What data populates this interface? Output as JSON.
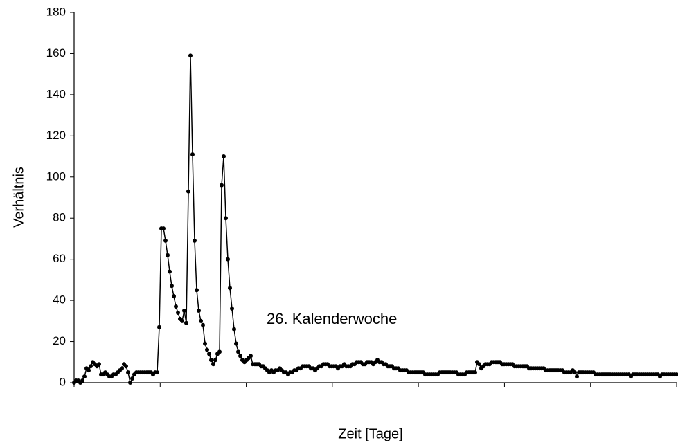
{
  "chart_data": {
    "type": "line",
    "y_label": "Verhältnis",
    "x_label": "Zeit [Tage]",
    "annotation": "26. Kalenderwoche",
    "color": "#000000",
    "ylim": [
      0,
      180
    ],
    "yticks": [
      0,
      20,
      40,
      60,
      80,
      100,
      120,
      140,
      160,
      180
    ],
    "values": [
      0,
      1,
      1,
      0,
      1,
      3,
      7,
      6,
      8,
      10,
      9,
      8,
      9,
      4,
      4,
      5,
      4,
      3,
      3,
      4,
      4,
      5,
      6,
      7,
      9,
      8,
      5,
      0,
      2,
      4,
      5,
      5,
      5,
      5,
      5,
      5,
      5,
      5,
      4,
      5,
      5,
      27,
      75,
      75,
      69,
      62,
      54,
      47,
      42,
      37,
      34,
      31,
      30,
      35,
      29,
      93,
      159,
      111,
      69,
      45,
      35,
      30,
      28,
      19,
      16,
      14,
      11,
      9,
      11,
      14,
      15,
      96,
      110,
      80,
      60,
      46,
      36,
      26,
      19,
      15,
      13,
      11,
      10,
      11,
      12,
      13,
      9,
      9,
      9,
      9,
      8,
      8,
      7,
      6,
      5,
      6,
      5,
      6,
      6,
      7,
      6,
      5,
      5,
      4,
      5,
      5,
      6,
      6,
      7,
      7,
      8,
      8,
      8,
      8,
      7,
      7,
      6,
      7,
      8,
      8,
      9,
      9,
      9,
      8,
      8,
      8,
      8,
      7,
      8,
      8,
      9,
      8,
      8,
      8,
      9,
      9,
      10,
      10,
      10,
      9,
      9,
      10,
      10,
      10,
      9,
      10,
      11,
      10,
      10,
      9,
      9,
      8,
      8,
      8,
      7,
      7,
      7,
      6,
      6,
      6,
      6,
      5,
      5,
      5,
      5,
      5,
      5,
      5,
      5,
      4,
      4,
      4,
      4,
      4,
      4,
      4,
      5,
      5,
      5,
      5,
      5,
      5,
      5,
      5,
      5,
      4,
      4,
      4,
      4,
      5,
      5,
      5,
      5,
      5,
      10,
      9,
      7,
      8,
      9,
      9,
      9,
      10,
      10,
      10,
      10,
      10,
      9,
      9,
      9,
      9,
      9,
      9,
      8,
      8,
      8,
      8,
      8,
      8,
      8,
      7,
      7,
      7,
      7,
      7,
      7,
      7,
      7,
      6,
      6,
      6,
      6,
      6,
      6,
      6,
      6,
      6,
      5,
      5,
      5,
      5,
      6,
      5,
      3,
      5,
      5,
      5,
      5,
      5,
      5,
      5,
      5,
      4,
      4,
      4,
      4,
      4,
      4,
      4,
      4,
      4,
      4,
      4,
      4,
      4,
      4,
      4,
      4,
      4,
      3,
      4,
      4,
      4,
      4,
      4,
      4,
      4,
      4,
      4,
      4,
      4,
      4,
      4,
      3,
      4,
      4,
      4,
      4,
      4,
      4,
      4,
      4
    ]
  }
}
